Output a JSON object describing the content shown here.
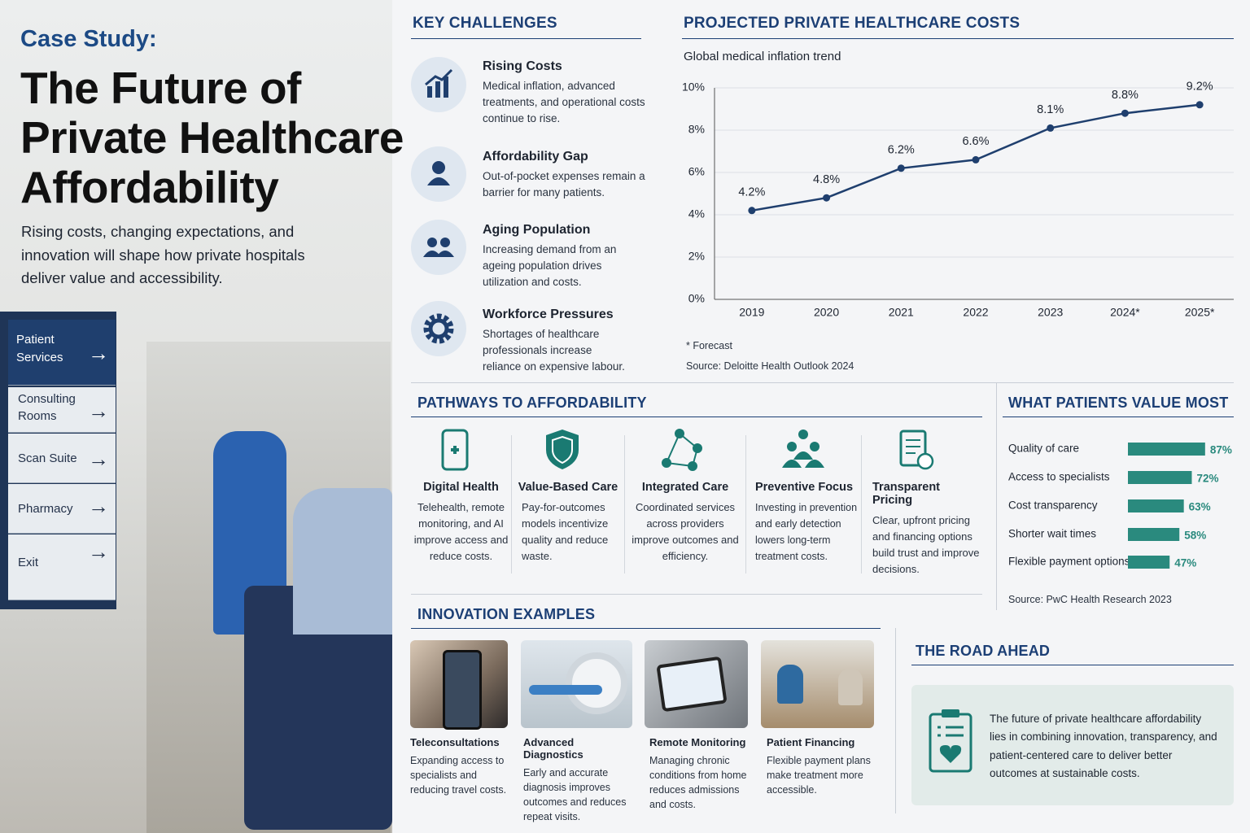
{
  "hero": {
    "kicker": "Case Study:",
    "title_lines": [
      "The Future of",
      "Private Healthcare",
      "Affordability"
    ],
    "subtitle": "Rising costs, changing expectations, and innovation will shape how private hospitals deliver value and accessibility."
  },
  "signage": [
    "Patient Services",
    "Consulting Rooms",
    "Scan Suite",
    "Pharmacy",
    "Exit"
  ],
  "challenges": {
    "heading": "KEY CHALLENGES",
    "items": [
      {
        "title": "Rising Costs",
        "text": "Medical inflation, advanced treatments, and operational costs continue to rise."
      },
      {
        "title": "Affordability Gap",
        "text": "Out-of-pocket expenses remain a barrier for many patients."
      },
      {
        "title": "Aging Population",
        "text": "Increasing demand from an ageing population drives utilization and costs."
      },
      {
        "title": "Workforce Pressures",
        "text": "Shortages of healthcare professionals increase reliance on expensive labour."
      }
    ]
  },
  "chart_data": [
    {
      "type": "line",
      "title": "PROJECTED PRIVATE HEALTHCARE COSTS",
      "subtitle": "Global medical inflation trend",
      "categories": [
        "2019",
        "2020",
        "2021",
        "2022",
        "2023",
        "2024*",
        "2025*"
      ],
      "values": [
        4.2,
        4.8,
        6.2,
        6.6,
        8.1,
        8.8,
        9.2
      ],
      "value_labels": [
        "4.2%",
        "4.8%",
        "6.2%",
        "6.6%",
        "8.1%",
        "8.8%",
        "9.2%"
      ],
      "color": "#1f3f6e",
      "ylim": [
        0,
        10
      ],
      "yticks": [
        {
          "value": 0,
          "label": "0%"
        },
        {
          "value": 2,
          "label": "2%"
        },
        {
          "value": 4,
          "label": "4%"
        },
        {
          "value": 6,
          "label": "6%"
        },
        {
          "value": 8,
          "label": "8%"
        },
        {
          "value": 10,
          "label": "10%"
        }
      ],
      "grid": true,
      "annotation": "* Forecast",
      "source": "Source: Deloitte Health Outlook 2024"
    },
    {
      "type": "bar",
      "orientation": "horizontal",
      "title": "WHAT PATIENTS VALUE MOST",
      "categories": [
        "Quality of care",
        "Access to specialists",
        "Cost transparency",
        "Shorter wait times",
        "Flexible payment options"
      ],
      "values": [
        87,
        72,
        63,
        58,
        47
      ],
      "value_labels": [
        "87%",
        "72%",
        "63%",
        "58%",
        "47%"
      ],
      "color": "#2a8a7e",
      "source": "Source: PwC Health Research 2023"
    }
  ],
  "pathways": {
    "heading": "PATHWAYS TO AFFORDABILITY",
    "items": [
      {
        "title": "Digital Health",
        "text": "Telehealth, remote monitoring, and AI improve access and reduce costs."
      },
      {
        "title": "Value-Based Care",
        "text": "Pay-for-outcomes models incentivize quality and reduce waste."
      },
      {
        "title": "Integrated Care",
        "text": "Coordinated services across providers improve outcomes and efficiency."
      },
      {
        "title": "Preventive Focus",
        "text": "Investing in prevention and early detection lowers long-term treatment costs."
      },
      {
        "title": "Transparent Pricing",
        "text": "Clear, upfront pricing and financing options build trust and improve decisions."
      }
    ]
  },
  "innovation": {
    "heading": "INNOVATION EXAMPLES",
    "items": [
      {
        "title": "Teleconsultations",
        "text": "Expanding access to specialists and reducing travel costs."
      },
      {
        "title": "Advanced Diagnostics",
        "text": "Early and accurate diagnosis improves outcomes and reduces repeat visits."
      },
      {
        "title": "Remote Monitoring",
        "text": "Managing chronic conditions from home reduces admissions and costs."
      },
      {
        "title": "Patient Financing",
        "text": "Flexible payment plans make treatment more accessible."
      }
    ]
  },
  "road_ahead": {
    "heading": "THE ROAD AHEAD",
    "text": "The future of private healthcare affordability lies in combining innovation, transparency, and patient-centered care to deliver better outcomes at sustainable costs."
  }
}
